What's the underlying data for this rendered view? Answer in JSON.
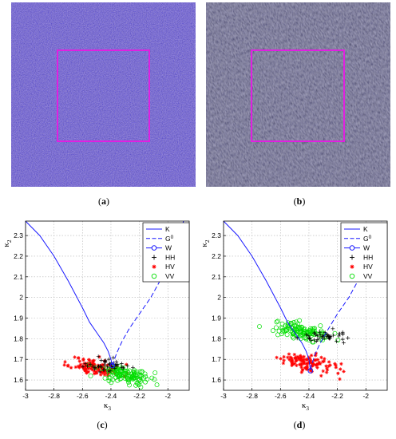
{
  "captions": {
    "a": "a",
    "b": "b",
    "c": "c",
    "d": "d"
  },
  "images": {
    "a": {
      "kind": "sar-noise",
      "base_color": "#3b3bb6",
      "box_color": "#e020e0"
    },
    "b": {
      "kind": "sar-waves",
      "base_color": "#363048",
      "box_color": "#e020e0"
    }
  },
  "chart_data": [
    {
      "panel": "c",
      "type": "scatter",
      "xlabel": "κ3",
      "ylabel": "κ2",
      "xlim": [
        -3,
        -1.85
      ],
      "ylim": [
        1.55,
        2.37
      ],
      "xticks": [
        -3,
        -2.8,
        -2.6,
        -2.4,
        -2.2,
        -2
      ],
      "yticks": [
        1.6,
        1.7,
        1.8,
        1.9,
        2,
        2.1,
        2.2,
        2.3
      ],
      "grid": true,
      "legend_position": "top-right",
      "legend": [
        {
          "label": "K",
          "style": "solid-line",
          "color": "#1a1aff"
        },
        {
          "label": "G0",
          "style": "dashed-line",
          "color": "#1a1aff"
        },
        {
          "label": "W",
          "style": "line-circle",
          "color": "#1a1aff"
        },
        {
          "label": "HH",
          "style": "plus",
          "color": "#000000"
        },
        {
          "label": "HV",
          "style": "star",
          "color": "#ff0000"
        },
        {
          "label": "VV",
          "style": "circle",
          "color": "#00dd00"
        }
      ],
      "curves": {
        "K": {
          "x": [
            -3.0,
            -2.9,
            -2.8,
            -2.7,
            -2.6,
            -2.55,
            -2.5,
            -2.45,
            -2.42,
            -2.4,
            -2.39
          ],
          "y": [
            2.37,
            2.3,
            2.2,
            2.08,
            1.95,
            1.88,
            1.83,
            1.78,
            1.74,
            1.7,
            1.67
          ]
        },
        "G0": {
          "x": [
            -2.39,
            -2.36,
            -2.32,
            -2.27,
            -2.2,
            -2.12,
            -2.04,
            -1.96,
            -1.89
          ],
          "y": [
            1.67,
            1.73,
            1.79,
            1.85,
            1.92,
            2.0,
            2.1,
            2.22,
            2.37
          ]
        },
        "W": {
          "x": [
            -2.39
          ],
          "y": [
            1.67
          ]
        }
      },
      "clusters": {
        "HH": {
          "center": [
            -2.42,
            1.675
          ],
          "spread": [
            0.08,
            0.015
          ],
          "n": 45
        },
        "HV": {
          "center": [
            -2.5,
            1.66
          ],
          "spread": [
            0.09,
            0.02
          ],
          "n": 120
        },
        "VV": {
          "center": [
            -2.3,
            1.625
          ],
          "spread": [
            0.09,
            0.02
          ],
          "n": 120
        }
      }
    },
    {
      "panel": "d",
      "type": "scatter",
      "xlabel": "κ3",
      "ylabel": "κ2",
      "xlim": [
        -3,
        -1.85
      ],
      "ylim": [
        1.55,
        2.37
      ],
      "xticks": [
        -3,
        -2.8,
        -2.6,
        -2.4,
        -2.2,
        -2
      ],
      "yticks": [
        1.6,
        1.7,
        1.8,
        1.9,
        2,
        2.1,
        2.2,
        2.3
      ],
      "grid": true,
      "legend_position": "top-right",
      "legend": [
        {
          "label": "K",
          "style": "solid-line",
          "color": "#1a1aff"
        },
        {
          "label": "G0",
          "style": "dashed-line",
          "color": "#1a1aff"
        },
        {
          "label": "W",
          "style": "line-circle",
          "color": "#1a1aff"
        },
        {
          "label": "HH",
          "style": "plus",
          "color": "#000000"
        },
        {
          "label": "HV",
          "style": "star",
          "color": "#ff0000"
        },
        {
          "label": "VV",
          "style": "circle",
          "color": "#00dd00"
        }
      ],
      "curves": {
        "K": {
          "x": [
            -3.0,
            -2.9,
            -2.8,
            -2.7,
            -2.6,
            -2.55,
            -2.5,
            -2.45,
            -2.42,
            -2.4,
            -2.39
          ],
          "y": [
            2.37,
            2.3,
            2.2,
            2.08,
            1.95,
            1.88,
            1.83,
            1.78,
            1.74,
            1.7,
            1.65
          ]
        },
        "G0": {
          "x": [
            -2.39,
            -2.36,
            -2.32,
            -2.27,
            -2.2,
            -2.12,
            -2.04,
            -1.96,
            -1.89
          ],
          "y": [
            1.65,
            1.72,
            1.78,
            1.84,
            1.92,
            2.0,
            2.1,
            2.22,
            2.37
          ]
        },
        "W": {
          "x": [
            -2.39
          ],
          "y": [
            1.645
          ]
        }
      },
      "clusters": {
        "HH": {
          "center": [
            -2.3,
            1.81
          ],
          "spread": [
            0.08,
            0.012
          ],
          "n": 45
        },
        "HV": {
          "center": [
            -2.42,
            1.685
          ],
          "spread": [
            0.1,
            0.02
          ],
          "n": 110
        },
        "VV": {
          "center": [
            -2.48,
            1.84
          ],
          "spread": [
            0.1,
            0.02
          ],
          "n": 120
        }
      }
    }
  ]
}
